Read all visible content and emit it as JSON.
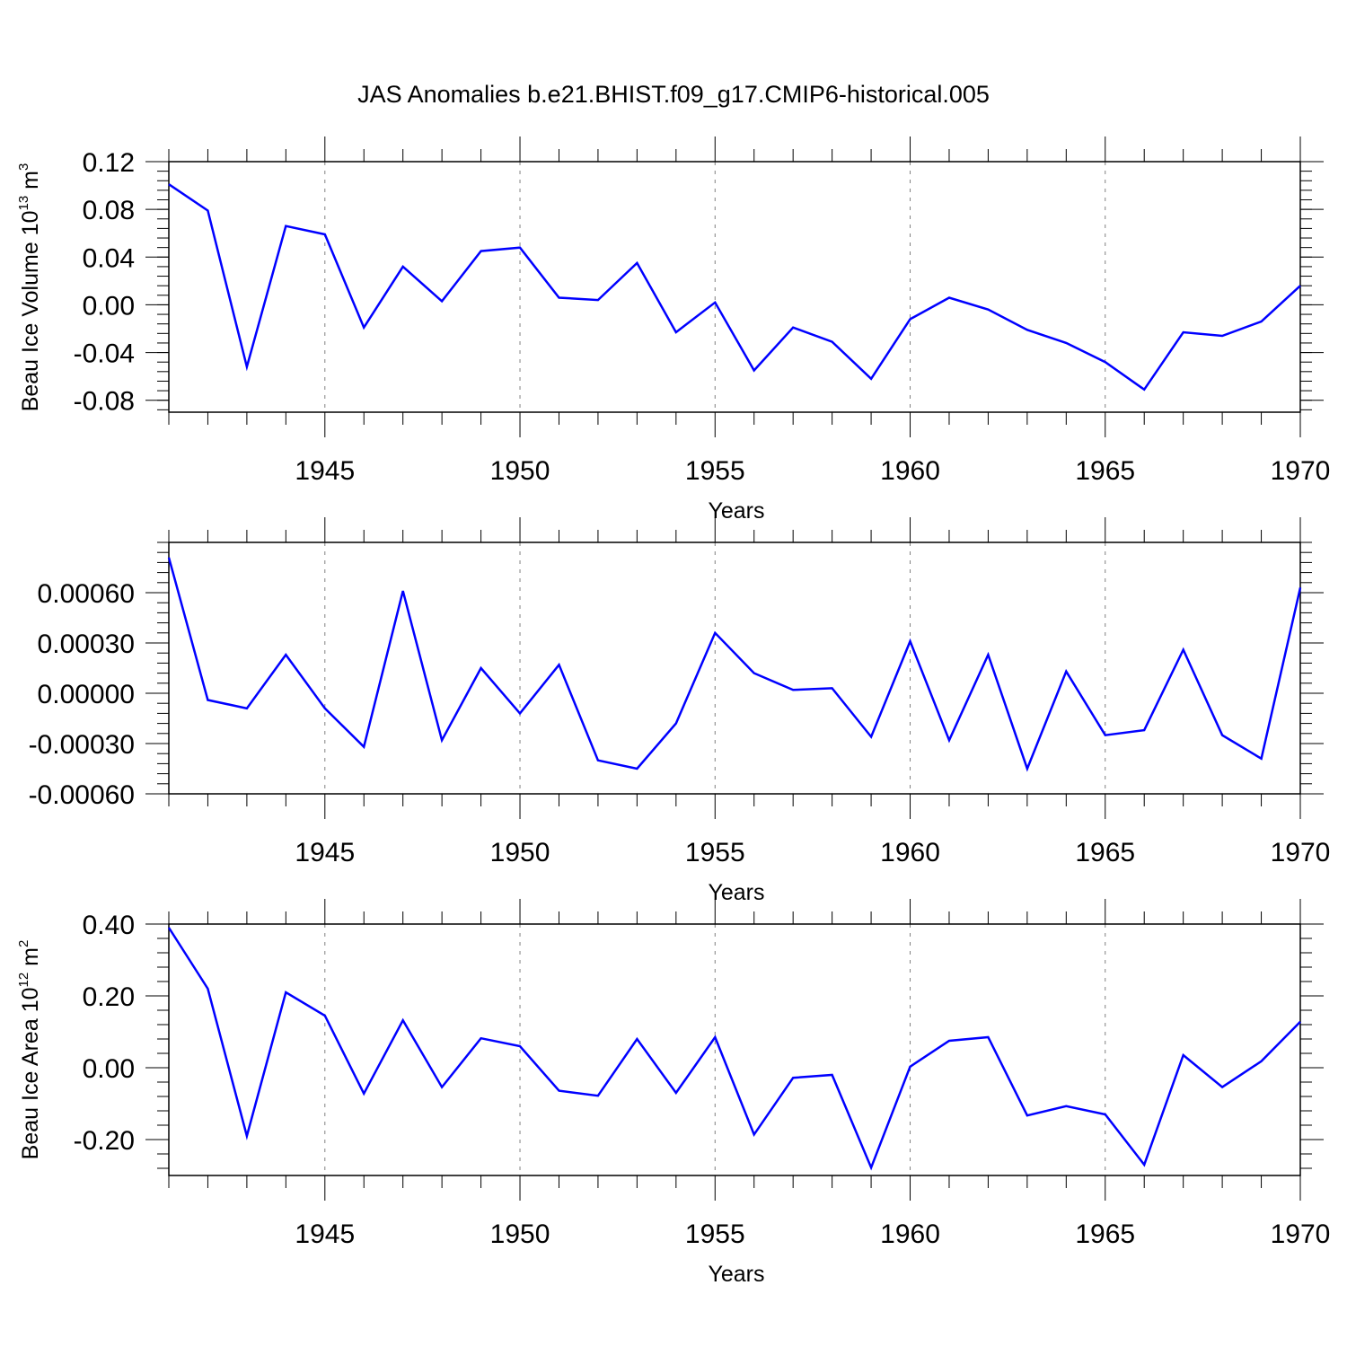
{
  "title": "JAS Anomalies b.e21.BHIST.f09_g17.CMIP6-historical.005",
  "colors": {
    "series": "#0000ff",
    "axis": "#000000",
    "grid": "#808080",
    "background": "#ffffff"
  },
  "chart_data": [
    {
      "type": "line",
      "xlabel": "Years",
      "ylabel": {
        "pre": "Beau Ice Volume 10",
        "sup1": "13",
        "mid": " m",
        "sup2": "3"
      },
      "xlim": [
        1941,
        1970
      ],
      "ylim": [
        -0.09,
        0.12
      ],
      "x_ticks": [
        "1945",
        "1950",
        "1955",
        "1960",
        "1965",
        "1970"
      ],
      "y_ticks": [
        "0.12",
        "0.08",
        "0.04",
        "0.00",
        "-0.04",
        "-0.08"
      ],
      "grid": "vertical dashed at x ticks",
      "x": [
        1941,
        1942,
        1943,
        1944,
        1945,
        1946,
        1947,
        1948,
        1949,
        1950,
        1951,
        1952,
        1953,
        1954,
        1955,
        1956,
        1957,
        1958,
        1959,
        1960,
        1961,
        1962,
        1963,
        1964,
        1965,
        1966,
        1967,
        1968,
        1969,
        1970
      ],
      "values": [
        0.101,
        0.079,
        -0.052,
        0.066,
        0.059,
        -0.019,
        0.032,
        0.003,
        0.045,
        0.048,
        0.006,
        0.004,
        0.035,
        -0.023,
        0.002,
        -0.055,
        -0.019,
        -0.031,
        -0.062,
        -0.012,
        0.006,
        -0.004,
        -0.021,
        -0.032,
        -0.048,
        -0.071,
        -0.023,
        -0.026,
        -0.014,
        0.016
      ]
    },
    {
      "type": "line",
      "xlabel": "Years",
      "ylabel": "",
      "xlim": [
        1941,
        1970
      ],
      "ylim": [
        -0.0006,
        0.0009
      ],
      "x_ticks": [
        "1945",
        "1950",
        "1955",
        "1960",
        "1965",
        "1970"
      ],
      "y_ticks": [
        "0.00060",
        "0.00030",
        "0.00000",
        "-0.00030",
        "-0.00060"
      ],
      "grid": "vertical dashed at x ticks",
      "x": [
        1941,
        1942,
        1943,
        1944,
        1945,
        1946,
        1947,
        1948,
        1949,
        1950,
        1951,
        1952,
        1953,
        1954,
        1955,
        1956,
        1957,
        1958,
        1959,
        1960,
        1961,
        1962,
        1963,
        1964,
        1965,
        1966,
        1967,
        1968,
        1969,
        1970
      ],
      "values": [
        0.00081,
        -4e-05,
        -9e-05,
        0.00023,
        -9e-05,
        -0.00032,
        0.00061,
        -0.00028,
        0.00015,
        -0.00012,
        0.00017,
        -0.0004,
        -0.00045,
        -0.00018,
        0.00036,
        0.00012,
        2e-05,
        3e-05,
        -0.00026,
        0.00031,
        -0.00028,
        0.00023,
        -0.00045,
        0.00013,
        -0.00025,
        -0.00022,
        0.00026,
        -0.00025,
        -0.00039,
        0.00063
      ]
    },
    {
      "type": "line",
      "xlabel": "Years",
      "ylabel": {
        "pre": "Beau Ice Area 10",
        "sup1": "12",
        "mid": " m",
        "sup2": "2"
      },
      "xlim": [
        1941,
        1970
      ],
      "ylim": [
        -0.3,
        0.4
      ],
      "x_ticks": [
        "1945",
        "1950",
        "1955",
        "1960",
        "1965",
        "1970"
      ],
      "y_ticks": [
        "0.40",
        "0.20",
        "0.00",
        "-0.20"
      ],
      "grid": "vertical dashed at x ticks",
      "x": [
        1941,
        1942,
        1943,
        1944,
        1945,
        1946,
        1947,
        1948,
        1949,
        1950,
        1951,
        1952,
        1953,
        1954,
        1955,
        1956,
        1957,
        1958,
        1959,
        1960,
        1961,
        1962,
        1963,
        1964,
        1965,
        1966,
        1967,
        1968,
        1969,
        1970
      ],
      "values": [
        0.39,
        0.22,
        -0.19,
        0.21,
        0.145,
        -0.072,
        0.132,
        -0.054,
        0.082,
        0.06,
        -0.064,
        -0.078,
        0.08,
        -0.07,
        0.085,
        -0.186,
        -0.028,
        -0.02,
        -0.278,
        0.003,
        0.075,
        0.085,
        -0.133,
        -0.107,
        -0.13,
        -0.27,
        0.035,
        -0.054,
        0.018,
        0.128
      ]
    }
  ]
}
